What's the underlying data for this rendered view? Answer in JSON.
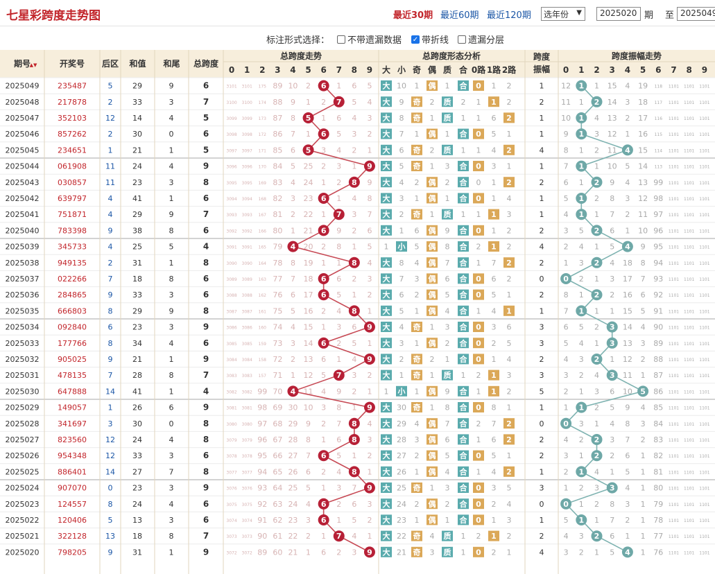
{
  "title": "七星彩跨度走势图",
  "ranges": [
    {
      "label": "最近30期",
      "active": true
    },
    {
      "label": "最近60期",
      "active": false
    },
    {
      "label": "最近120期",
      "active": false
    }
  ],
  "year_select": "选年份",
  "from_value": "2025020",
  "from_label": "期",
  "to_label": "至",
  "to_value": "2025049",
  "options_label": "标注形式选择：",
  "options": [
    {
      "label": "不带遗漏数据",
      "checked": false
    },
    {
      "label": "带折线",
      "checked": true
    },
    {
      "label": "遗漏分层",
      "checked": false
    }
  ],
  "headers": {
    "period": "期号",
    "sort_icon": "▲▼",
    "number": "开奖号",
    "back": "后区",
    "sum": "和值",
    "tail": "和尾",
    "span": "总跨度",
    "span_trend": "总跨度走势",
    "form": "总跨度形态分析",
    "span_amp": "跨度振幅",
    "amp_trend": "跨度振幅走势",
    "digits": [
      "0",
      "1",
      "2",
      "3",
      "4",
      "5",
      "6",
      "7",
      "8",
      "9"
    ],
    "form_cols": [
      "大",
      "小",
      "奇",
      "偶",
      "质",
      "合",
      "0路",
      "1路",
      "2路"
    ]
  },
  "colors": {
    "accent": "#c2252b",
    "link": "#1b56a6",
    "big": "#5aabad",
    "odd": "#dba858",
    "ball_red": "#b72036",
    "ball_teal": "#6ea8a7"
  },
  "rows": [
    {
      "p": "2025049",
      "n": "235487",
      "b": "5",
      "s": "29",
      "t": "9",
      "sp": 6,
      "o": [
        "3101",
        "3101",
        "175",
        "89",
        "10",
        "2",
        "6",
        "1",
        "6",
        "5"
      ],
      "f": [
        "大",
        "10",
        "1",
        "偶",
        "1",
        "合",
        "0",
        "1",
        "2"
      ],
      "a": 1,
      "ao": [
        "12",
        "1",
        "1",
        "15",
        "4",
        "19",
        "118",
        "1101",
        "1101",
        "1101"
      ]
    },
    {
      "p": "2025048",
      "n": "217878",
      "b": "2",
      "s": "33",
      "t": "3",
      "sp": 7,
      "o": [
        "3100",
        "3100",
        "174",
        "88",
        "9",
        "1",
        "2",
        "7",
        "5",
        "4"
      ],
      "f": [
        "大",
        "9",
        "奇",
        "2",
        "质",
        "2",
        "1",
        "1",
        "2"
      ],
      "a": 2,
      "ao": [
        "11",
        "1",
        "2",
        "14",
        "3",
        "18",
        "117",
        "1101",
        "1101",
        "1101"
      ]
    },
    {
      "p": "2025047",
      "n": "352103",
      "b": "12",
      "s": "14",
      "t": "4",
      "sp": 5,
      "o": [
        "3099",
        "3099",
        "173",
        "87",
        "8",
        "5",
        "1",
        "6",
        "4",
        "3"
      ],
      "f": [
        "大",
        "8",
        "奇",
        "1",
        "质",
        "1",
        "1",
        "6",
        "2"
      ],
      "a": 1,
      "ao": [
        "10",
        "1",
        "4",
        "13",
        "2",
        "17",
        "116",
        "1101",
        "1101",
        "1101"
      ]
    },
    {
      "p": "2025046",
      "n": "857262",
      "b": "2",
      "s": "30",
      "t": "0",
      "sp": 6,
      "o": [
        "3098",
        "3098",
        "172",
        "86",
        "7",
        "1",
        "6",
        "5",
        "3",
        "2"
      ],
      "f": [
        "大",
        "7",
        "1",
        "偶",
        "1",
        "合",
        "0",
        "5",
        "1"
      ],
      "a": 1,
      "ao": [
        "9",
        "1",
        "3",
        "12",
        "1",
        "16",
        "115",
        "1101",
        "1101",
        "1101"
      ]
    },
    {
      "p": "2025045",
      "n": "234651",
      "b": "1",
      "s": "21",
      "t": "1",
      "sp": 5,
      "o": [
        "3097",
        "3097",
        "171",
        "85",
        "6",
        "5",
        "3",
        "4",
        "2",
        "1"
      ],
      "f": [
        "大",
        "6",
        "奇",
        "2",
        "质",
        "1",
        "1",
        "4",
        "2"
      ],
      "a": 4,
      "ao": [
        "8",
        "1",
        "2",
        "11",
        "4",
        "15",
        "114",
        "1101",
        "1101",
        "1101"
      ]
    },
    {
      "p": "2025044",
      "n": "061908",
      "b": "11",
      "s": "24",
      "t": "4",
      "sp": 9,
      "o": [
        "3096",
        "3096",
        "170",
        "84",
        "5",
        "25",
        "2",
        "3",
        "1",
        "9"
      ],
      "f": [
        "大",
        "5",
        "奇",
        "1",
        "3",
        "合",
        "0",
        "3",
        "1"
      ],
      "a": 1,
      "ao": [
        "7",
        "1",
        "1",
        "10",
        "5",
        "14",
        "113",
        "1101",
        "1101",
        "1101"
      ]
    },
    {
      "p": "2025043",
      "n": "030857",
      "b": "11",
      "s": "23",
      "t": "3",
      "sp": 8,
      "o": [
        "3095",
        "3095",
        "169",
        "83",
        "4",
        "24",
        "1",
        "2",
        "8",
        "9"
      ],
      "f": [
        "大",
        "4",
        "2",
        "偶",
        "2",
        "合",
        "0",
        "1",
        "2"
      ],
      "a": 2,
      "ao": [
        "6",
        "1",
        "2",
        "9",
        "4",
        "13",
        "99",
        "1101",
        "1101",
        "1101"
      ]
    },
    {
      "p": "2025042",
      "n": "639797",
      "b": "4",
      "s": "41",
      "t": "1",
      "sp": 6,
      "o": [
        "3094",
        "3094",
        "168",
        "82",
        "3",
        "23",
        "6",
        "1",
        "4",
        "8"
      ],
      "f": [
        "大",
        "3",
        "1",
        "偶",
        "1",
        "合",
        "0",
        "1",
        "4"
      ],
      "a": 1,
      "ao": [
        "5",
        "1",
        "2",
        "8",
        "3",
        "12",
        "98",
        "1101",
        "1101",
        "1101"
      ]
    },
    {
      "p": "2025041",
      "n": "751871",
      "b": "4",
      "s": "29",
      "t": "9",
      "sp": 7,
      "o": [
        "3093",
        "3093",
        "167",
        "81",
        "2",
        "22",
        "1",
        "7",
        "3",
        "7"
      ],
      "f": [
        "大",
        "2",
        "奇",
        "1",
        "质",
        "1",
        "1",
        "1",
        "3"
      ],
      "a": 1,
      "ao": [
        "4",
        "1",
        "1",
        "7",
        "2",
        "11",
        "97",
        "1101",
        "1101",
        "1101"
      ]
    },
    {
      "p": "2025040",
      "n": "783398",
      "b": "9",
      "s": "38",
      "t": "8",
      "sp": 6,
      "o": [
        "3092",
        "3092",
        "166",
        "80",
        "1",
        "21",
        "6",
        "9",
        "2",
        "6"
      ],
      "f": [
        "大",
        "1",
        "6",
        "偶",
        "9",
        "合",
        "0",
        "1",
        "2"
      ],
      "a": 2,
      "ao": [
        "3",
        "5",
        "2",
        "6",
        "1",
        "10",
        "96",
        "1101",
        "1101",
        "1101"
      ]
    },
    {
      "p": "2025039",
      "n": "345733",
      "b": "4",
      "s": "25",
      "t": "5",
      "sp": 4,
      "o": [
        "3091",
        "3091",
        "165",
        "79",
        "4",
        "20",
        "2",
        "8",
        "1",
        "5"
      ],
      "f": [
        "1",
        "小",
        "5",
        "偶",
        "8",
        "合",
        "2",
        "1",
        "2"
      ],
      "a": 4,
      "ao": [
        "2",
        "4",
        "1",
        "5",
        "4",
        "9",
        "95",
        "1101",
        "1101",
        "1101"
      ]
    },
    {
      "p": "2025038",
      "n": "949135",
      "b": "2",
      "s": "31",
      "t": "1",
      "sp": 8,
      "o": [
        "3090",
        "3090",
        "164",
        "78",
        "8",
        "19",
        "1",
        "1",
        "8",
        "4"
      ],
      "f": [
        "大",
        "8",
        "4",
        "偶",
        "7",
        "合",
        "1",
        "7",
        "2"
      ],
      "a": 2,
      "ao": [
        "1",
        "3",
        "2",
        "4",
        "18",
        "8",
        "94",
        "1101",
        "1101",
        "1101"
      ]
    },
    {
      "p": "2025037",
      "n": "022266",
      "b": "7",
      "s": "18",
      "t": "8",
      "sp": 6,
      "o": [
        "3089",
        "3089",
        "163",
        "77",
        "7",
        "18",
        "6",
        "6",
        "2",
        "3"
      ],
      "f": [
        "大",
        "7",
        "3",
        "偶",
        "6",
        "合",
        "0",
        "6",
        "2"
      ],
      "a": 0,
      "ao": [
        "0",
        "2",
        "1",
        "3",
        "17",
        "7",
        "93",
        "1101",
        "1101",
        "1101"
      ]
    },
    {
      "p": "2025036",
      "n": "284865",
      "b": "9",
      "s": "33",
      "t": "3",
      "sp": 6,
      "o": [
        "3088",
        "3088",
        "162",
        "76",
        "6",
        "17",
        "6",
        "5",
        "1",
        "2"
      ],
      "f": [
        "大",
        "6",
        "2",
        "偶",
        "5",
        "合",
        "0",
        "5",
        "1"
      ],
      "a": 2,
      "ao": [
        "8",
        "1",
        "2",
        "2",
        "16",
        "6",
        "92",
        "1101",
        "1101",
        "1101"
      ]
    },
    {
      "p": "2025035",
      "n": "666803",
      "b": "8",
      "s": "29",
      "t": "9",
      "sp": 8,
      "o": [
        "3087",
        "3087",
        "161",
        "75",
        "5",
        "16",
        "2",
        "4",
        "8",
        "1"
      ],
      "f": [
        "大",
        "5",
        "1",
        "偶",
        "4",
        "合",
        "1",
        "4",
        "1"
      ],
      "a": 1,
      "ao": [
        "7",
        "1",
        "1",
        "1",
        "15",
        "5",
        "91",
        "1101",
        "1101",
        "1101"
      ]
    },
    {
      "p": "2025034",
      "n": "092840",
      "b": "6",
      "s": "23",
      "t": "3",
      "sp": 9,
      "o": [
        "3086",
        "3086",
        "160",
        "74",
        "4",
        "15",
        "1",
        "3",
        "6",
        "9"
      ],
      "f": [
        "大",
        "4",
        "奇",
        "1",
        "3",
        "合",
        "0",
        "3",
        "6"
      ],
      "a": 3,
      "ao": [
        "6",
        "5",
        "2",
        "3",
        "14",
        "4",
        "90",
        "1101",
        "1101",
        "1101"
      ]
    },
    {
      "p": "2025033",
      "n": "177766",
      "b": "8",
      "s": "34",
      "t": "4",
      "sp": 6,
      "o": [
        "3085",
        "3085",
        "159",
        "73",
        "3",
        "14",
        "6",
        "2",
        "5",
        "1"
      ],
      "f": [
        "大",
        "3",
        "1",
        "偶",
        "2",
        "合",
        "0",
        "2",
        "5"
      ],
      "a": 3,
      "ao": [
        "5",
        "4",
        "1",
        "3",
        "13",
        "3",
        "89",
        "1101",
        "1101",
        "1101"
      ]
    },
    {
      "p": "2025032",
      "n": "905025",
      "b": "9",
      "s": "21",
      "t": "1",
      "sp": 9,
      "o": [
        "3084",
        "3084",
        "158",
        "72",
        "2",
        "13",
        "6",
        "1",
        "4",
        "9"
      ],
      "f": [
        "大",
        "2",
        "奇",
        "2",
        "1",
        "合",
        "0",
        "1",
        "4"
      ],
      "a": 2,
      "ao": [
        "4",
        "3",
        "2",
        "1",
        "12",
        "2",
        "88",
        "1101",
        "1101",
        "1101"
      ]
    },
    {
      "p": "2025031",
      "n": "478135",
      "b": "7",
      "s": "28",
      "t": "8",
      "sp": 7,
      "o": [
        "3083",
        "3083",
        "157",
        "71",
        "1",
        "12",
        "5",
        "7",
        "3",
        "2"
      ],
      "f": [
        "大",
        "1",
        "奇",
        "1",
        "质",
        "1",
        "2",
        "1",
        "3"
      ],
      "a": 3,
      "ao": [
        "3",
        "2",
        "4",
        "3",
        "11",
        "1",
        "87",
        "1101",
        "1101",
        "1101"
      ]
    },
    {
      "p": "2025030",
      "n": "647888",
      "b": "14",
      "s": "41",
      "t": "1",
      "sp": 4,
      "o": [
        "3082",
        "3082",
        "99",
        "70",
        "4",
        "11",
        "4",
        "9",
        "2",
        "1"
      ],
      "f": [
        "1",
        "小",
        "1",
        "偶",
        "9",
        "合",
        "1",
        "1",
        "2"
      ],
      "a": 5,
      "ao": [
        "2",
        "1",
        "3",
        "6",
        "10",
        "5",
        "86",
        "1101",
        "1101",
        "1101"
      ]
    },
    {
      "p": "2025029",
      "n": "149057",
      "b": "1",
      "s": "26",
      "t": "6",
      "sp": 9,
      "o": [
        "3081",
        "3081",
        "98",
        "69",
        "30",
        "10",
        "3",
        "8",
        "1",
        "9"
      ],
      "f": [
        "大",
        "30",
        "奇",
        "1",
        "8",
        "合",
        "0",
        "8",
        "1"
      ],
      "a": 1,
      "ao": [
        "1",
        "1",
        "2",
        "5",
        "9",
        "4",
        "85",
        "1101",
        "1101",
        "1101"
      ]
    },
    {
      "p": "2025028",
      "n": "341697",
      "b": "3",
      "s": "30",
      "t": "0",
      "sp": 8,
      "o": [
        "3080",
        "3080",
        "97",
        "68",
        "29",
        "9",
        "2",
        "7",
        "8",
        "4"
      ],
      "f": [
        "大",
        "29",
        "4",
        "偶",
        "7",
        "合",
        "2",
        "7",
        "2"
      ],
      "a": 0,
      "ao": [
        "0",
        "3",
        "1",
        "4",
        "8",
        "3",
        "84",
        "1101",
        "1101",
        "1101"
      ]
    },
    {
      "p": "2025027",
      "n": "823560",
      "b": "12",
      "s": "24",
      "t": "4",
      "sp": 8,
      "o": [
        "3079",
        "3079",
        "96",
        "67",
        "28",
        "8",
        "1",
        "6",
        "8",
        "3"
      ],
      "f": [
        "大",
        "28",
        "3",
        "偶",
        "6",
        "合",
        "1",
        "6",
        "2"
      ],
      "a": 2,
      "ao": [
        "4",
        "2",
        "2",
        "3",
        "7",
        "2",
        "83",
        "1101",
        "1101",
        "1101"
      ]
    },
    {
      "p": "2025026",
      "n": "954348",
      "b": "12",
      "s": "33",
      "t": "3",
      "sp": 6,
      "o": [
        "3078",
        "3078",
        "95",
        "66",
        "27",
        "7",
        "6",
        "5",
        "1",
        "2"
      ],
      "f": [
        "大",
        "27",
        "2",
        "偶",
        "5",
        "合",
        "0",
        "5",
        "1"
      ],
      "a": 2,
      "ao": [
        "3",
        "1",
        "2",
        "2",
        "6",
        "1",
        "82",
        "1101",
        "1101",
        "1101"
      ]
    },
    {
      "p": "2025025",
      "n": "886401",
      "b": "14",
      "s": "27",
      "t": "7",
      "sp": 8,
      "o": [
        "3077",
        "3077",
        "94",
        "65",
        "26",
        "6",
        "2",
        "4",
        "8",
        "1"
      ],
      "f": [
        "大",
        "26",
        "1",
        "偶",
        "4",
        "合",
        "1",
        "4",
        "2"
      ],
      "a": 1,
      "ao": [
        "2",
        "1",
        "4",
        "1",
        "5",
        "1",
        "81",
        "1101",
        "1101",
        "1101"
      ]
    },
    {
      "p": "2025024",
      "n": "907070",
      "b": "0",
      "s": "23",
      "t": "3",
      "sp": 9,
      "o": [
        "3076",
        "3076",
        "93",
        "64",
        "25",
        "5",
        "1",
        "3",
        "7",
        "9"
      ],
      "f": [
        "大",
        "25",
        "奇",
        "1",
        "3",
        "合",
        "0",
        "3",
        "5"
      ],
      "a": 3,
      "ao": [
        "1",
        "2",
        "3",
        "3",
        "4",
        "1",
        "80",
        "1101",
        "1101",
        "1101"
      ]
    },
    {
      "p": "2025023",
      "n": "124557",
      "b": "8",
      "s": "24",
      "t": "4",
      "sp": 6,
      "o": [
        "3075",
        "3075",
        "92",
        "63",
        "24",
        "4",
        "6",
        "2",
        "6",
        "3"
      ],
      "f": [
        "大",
        "24",
        "2",
        "偶",
        "2",
        "合",
        "0",
        "2",
        "4"
      ],
      "a": 0,
      "ao": [
        "0",
        "1",
        "2",
        "8",
        "3",
        "1",
        "79",
        "1101",
        "1101",
        "1101"
      ]
    },
    {
      "p": "2025022",
      "n": "120406",
      "b": "5",
      "s": "13",
      "t": "3",
      "sp": 6,
      "o": [
        "3074",
        "3074",
        "91",
        "62",
        "23",
        "3",
        "6",
        "1",
        "5",
        "2"
      ],
      "f": [
        "大",
        "23",
        "1",
        "偶",
        "1",
        "合",
        "0",
        "1",
        "3"
      ],
      "a": 1,
      "ao": [
        "5",
        "1",
        "1",
        "7",
        "2",
        "1",
        "78",
        "1101",
        "1101",
        "1101"
      ]
    },
    {
      "p": "2025021",
      "n": "322128",
      "b": "13",
      "s": "18",
      "t": "8",
      "sp": 7,
      "o": [
        "3073",
        "3073",
        "90",
        "61",
        "22",
        "2",
        "1",
        "7",
        "4",
        "1"
      ],
      "f": [
        "大",
        "22",
        "奇",
        "4",
        "质",
        "1",
        "2",
        "1",
        "2"
      ],
      "a": 2,
      "ao": [
        "4",
        "3",
        "2",
        "6",
        "1",
        "1",
        "77",
        "1101",
        "1101",
        "1101"
      ]
    },
    {
      "p": "2025020",
      "n": "798205",
      "b": "9",
      "s": "31",
      "t": "1",
      "sp": 9,
      "o": [
        "3072",
        "3072",
        "89",
        "60",
        "21",
        "1",
        "6",
        "2",
        "3",
        "9"
      ],
      "f": [
        "大",
        "21",
        "奇",
        "3",
        "质",
        "1",
        "0",
        "2",
        "1"
      ],
      "a": 4,
      "ao": [
        "3",
        "2",
        "1",
        "5",
        "4",
        "1",
        "76",
        "1101",
        "1101",
        "1101"
      ]
    }
  ]
}
